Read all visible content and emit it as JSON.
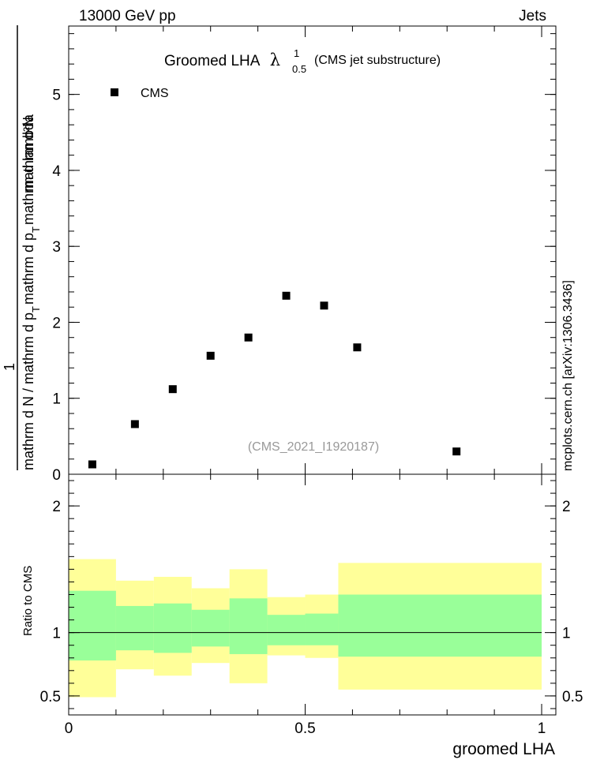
{
  "header": {
    "left": "13000 GeV pp",
    "right": "Jets"
  },
  "side_text": "mcplots.cern.ch [arXiv:1306.3436]",
  "watermark": "(CMS_2021_I1920187)",
  "colors": {
    "yellow_band": "#ffff99",
    "green_band": "#99ff99",
    "marker": "#000000",
    "watermark": "#999999"
  },
  "chart_data": [
    {
      "type": "scatter",
      "title_main": "Groomed LHA",
      "title_symbol": "λ",
      "title_sup": "1",
      "title_sub": "0.5",
      "title_suffix": "(CMS jet substructure)",
      "ylabel_numerator_prefix": "1",
      "ylabel_numerator": "mathrm d²N",
      "ylabel_den_a": "mathrm d N / mathrm d p",
      "ylabel_den_a_sub": "T",
      "ylabel_den_b": "mathrm d p",
      "ylabel_den_b_sub": "T",
      "ylabel_den_c": "mathrm d lambda",
      "xlim": [
        0,
        1.03
      ],
      "ylim": [
        0,
        5.9
      ],
      "yticks": [
        {
          "value": 0,
          "label": "0"
        },
        {
          "value": 1,
          "label": "1"
        },
        {
          "value": 2,
          "label": "2"
        },
        {
          "value": 3,
          "label": "3"
        },
        {
          "value": 4,
          "label": "4"
        },
        {
          "value": 5,
          "label": "5"
        }
      ],
      "legend": [
        {
          "name": "CMS",
          "marker": "square"
        }
      ],
      "series": [
        {
          "name": "CMS",
          "points": [
            {
              "x": 0.05,
              "y": 0.13
            },
            {
              "x": 0.14,
              "y": 0.66
            },
            {
              "x": 0.22,
              "y": 1.12
            },
            {
              "x": 0.3,
              "y": 1.56
            },
            {
              "x": 0.38,
              "y": 1.8
            },
            {
              "x": 0.46,
              "y": 2.35
            },
            {
              "x": 0.54,
              "y": 2.22
            },
            {
              "x": 0.61,
              "y": 1.67
            },
            {
              "x": 0.82,
              "y": 0.3
            }
          ]
        }
      ]
    },
    {
      "type": "area",
      "ylabel": "Ratio to CMS",
      "xlabel": "groomed LHA",
      "xlim": [
        0,
        1.03
      ],
      "ylim": [
        0.35,
        2.25
      ],
      "yticks": [
        {
          "value": 0.5,
          "label": "0.5"
        },
        {
          "value": 1,
          "label": "1"
        },
        {
          "value": 2,
          "label": "2"
        }
      ],
      "xticks": [
        {
          "value": 0,
          "label": "0"
        },
        {
          "value": 0.5,
          "label": "0.5"
        },
        {
          "value": 1,
          "label": "1"
        }
      ],
      "reference_line": 1,
      "bins": [
        {
          "x0": 0.0,
          "x1": 0.1,
          "y_lo": 0.49,
          "y_hi": 1.58,
          "g_lo": 0.78,
          "g_hi": 1.33
        },
        {
          "x0": 0.1,
          "x1": 0.18,
          "y_lo": 0.71,
          "y_hi": 1.41,
          "g_lo": 0.86,
          "g_hi": 1.21
        },
        {
          "x0": 0.18,
          "x1": 0.26,
          "y_lo": 0.66,
          "y_hi": 1.44,
          "g_lo": 0.84,
          "g_hi": 1.23
        },
        {
          "x0": 0.26,
          "x1": 0.34,
          "y_lo": 0.76,
          "y_hi": 1.35,
          "g_lo": 0.89,
          "g_hi": 1.18
        },
        {
          "x0": 0.34,
          "x1": 0.42,
          "y_lo": 0.6,
          "y_hi": 1.5,
          "g_lo": 0.83,
          "g_hi": 1.27
        },
        {
          "x0": 0.42,
          "x1": 0.5,
          "y_lo": 0.82,
          "y_hi": 1.28,
          "g_lo": 0.9,
          "g_hi": 1.14
        },
        {
          "x0": 0.5,
          "x1": 0.57,
          "y_lo": 0.8,
          "y_hi": 1.3,
          "g_lo": 0.9,
          "g_hi": 1.15
        },
        {
          "x0": 0.57,
          "x1": 1.0,
          "y_lo": 0.55,
          "y_hi": 1.55,
          "g_lo": 0.81,
          "g_hi": 1.3
        }
      ]
    }
  ]
}
